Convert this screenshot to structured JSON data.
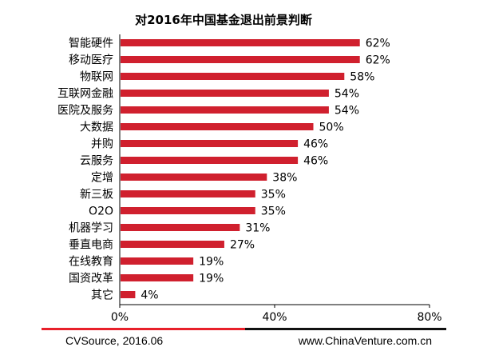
{
  "chart_data": {
    "type": "bar",
    "orientation": "horizontal",
    "title": "对2016年中国基金退出前景判断",
    "categories": [
      "智能硬件",
      "移动医疗",
      "物联网",
      "互联网金融",
      "医院及服务",
      "大数据",
      "并购",
      "云服务",
      "定增",
      "新三板",
      "O2O",
      "机器学习",
      "垂直电商",
      "在线教育",
      "国资改革",
      "其它"
    ],
    "values": [
      62,
      62,
      58,
      54,
      54,
      50,
      46,
      46,
      38,
      35,
      35,
      31,
      27,
      19,
      19,
      4
    ],
    "value_labels": [
      "62%",
      "62%",
      "58%",
      "54%",
      "54%",
      "50%",
      "46%",
      "46%",
      "38%",
      "35%",
      "35%",
      "31%",
      "27%",
      "19%",
      "19%",
      "4%"
    ],
    "x_ticks": [
      0,
      40,
      80
    ],
    "x_tick_labels": [
      "0%",
      "40%",
      "80%"
    ],
    "xlim": [
      0,
      80
    ],
    "bar_color": "#d0202e",
    "grid": false,
    "legend": "none"
  },
  "footer": {
    "source": "CVSource, 2016.06",
    "website": "www.ChinaVenture.com.cn",
    "line_left_color": "#e8202a",
    "line_right_color": "#111111"
  }
}
